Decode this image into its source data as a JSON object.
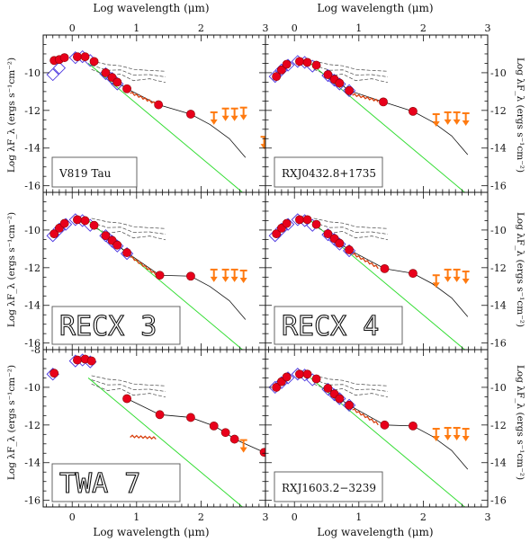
{
  "chart_data": {
    "type": "scatter",
    "x_axis": {
      "label": "Log wavelength (μm)",
      "ticks": [
        "0",
        "1",
        "2",
        "3"
      ],
      "range": [
        -0.45,
        3.0
      ]
    },
    "y_axis": {
      "label_left": "Log λF_λ (ergs s⁻¹cm⁻²)",
      "label_right": "Log λF_λ (ergs s⁻¹cm⁻²)",
      "ticks": [
        "-16",
        "-14",
        "-12",
        "-10"
      ],
      "top_tick_last_row": "-8",
      "range": [
        -16.35,
        -8.0
      ]
    },
    "colors": {
      "photometry": "#e8001b",
      "photometry_outline": "#8c0008",
      "model_photosphere": "#4a35e0",
      "upper_limit": "#ff7a10",
      "spectrum": "#d8400e",
      "disk_model": "#111111",
      "photosphere_line": "#33dd33",
      "dashed_median": "#444444"
    },
    "panels": [
      {
        "name": "V819 Tau",
        "name_style": "small",
        "photometry_x": [
          -0.28,
          -0.2,
          -0.12,
          0.08,
          0.2,
          0.34,
          0.52,
          0.62,
          0.7,
          0.85,
          1.34,
          1.84
        ],
        "photometry_y": [
          -9.35,
          -9.3,
          -9.2,
          -9.15,
          -9.15,
          -9.4,
          -10.0,
          -10.25,
          -10.5,
          -10.85,
          -11.7,
          -12.2
        ],
        "model_x": [
          -0.3,
          -0.2,
          0.05,
          0.16,
          0.28,
          0.52,
          0.62,
          0.7
        ],
        "model_y": [
          -10.1,
          -9.75,
          -9.2,
          -9.15,
          -9.35,
          -10.05,
          -10.3,
          -10.6
        ],
        "upper_limits_x": [
          2.2,
          2.38,
          2.52,
          2.66,
          2.98
        ],
        "upper_limits_y": [
          -12.1,
          -11.9,
          -11.9,
          -11.85,
          -13.4
        ]
      },
      {
        "name": "RXJ0432.8+1735",
        "name_style": "small",
        "photometry_x": [
          -0.28,
          -0.2,
          -0.12,
          0.08,
          0.2,
          0.34,
          0.52,
          0.62,
          0.7,
          0.85,
          1.38,
          1.84
        ],
        "photometry_y": [
          -10.2,
          -9.85,
          -9.55,
          -9.4,
          -9.45,
          -9.6,
          -10.1,
          -10.35,
          -10.55,
          -10.95,
          -11.55,
          -12.05
        ],
        "model_x": [
          -0.3,
          -0.2,
          -0.1,
          0.05,
          0.16,
          0.28,
          0.52,
          0.62,
          0.7,
          0.85
        ],
        "model_y": [
          -10.2,
          -9.85,
          -9.6,
          -9.4,
          -9.45,
          -9.65,
          -10.15,
          -10.4,
          -10.6,
          -10.95
        ],
        "upper_limits_x": [
          2.2,
          2.38,
          2.52,
          2.66
        ],
        "upper_limits_y": [
          -12.2,
          -12.1,
          -12.1,
          -12.15
        ]
      },
      {
        "name": "RECX 3",
        "name_style": "big",
        "photometry_x": [
          -0.28,
          -0.2,
          -0.12,
          0.08,
          0.2,
          0.34,
          0.52,
          0.62,
          0.7,
          0.85,
          1.36,
          1.84
        ],
        "photometry_y": [
          -10.2,
          -9.9,
          -9.65,
          -9.45,
          -9.5,
          -9.75,
          -10.3,
          -10.55,
          -10.8,
          -11.2,
          -12.4,
          -12.45
        ],
        "model_x": [
          -0.3,
          -0.2,
          -0.1,
          0.05,
          0.16,
          0.28,
          0.52,
          0.62,
          0.7,
          0.85
        ],
        "model_y": [
          -10.3,
          -9.95,
          -9.7,
          -9.45,
          -9.5,
          -9.75,
          -10.3,
          -10.6,
          -10.85,
          -11.25
        ],
        "upper_limits_x": [
          2.2,
          2.38,
          2.52,
          2.66
        ],
        "upper_limits_y": [
          -12.1,
          -12.1,
          -12.1,
          -12.15
        ]
      },
      {
        "name": "RECX 4",
        "name_style": "big",
        "photometry_x": [
          -0.28,
          -0.2,
          -0.12,
          0.08,
          0.2,
          0.34,
          0.52,
          0.62,
          0.7,
          0.85,
          1.4,
          1.84
        ],
        "photometry_y": [
          -10.2,
          -9.9,
          -9.65,
          -9.45,
          -9.45,
          -9.7,
          -10.2,
          -10.45,
          -10.7,
          -11.05,
          -12.05,
          -12.3
        ],
        "model_x": [
          -0.3,
          -0.2,
          -0.1,
          0.05,
          0.16,
          0.28,
          0.52,
          0.62,
          0.7,
          0.85
        ],
        "model_y": [
          -10.3,
          -9.95,
          -9.7,
          -9.45,
          -9.5,
          -9.75,
          -10.25,
          -10.5,
          -10.75,
          -11.1
        ],
        "upper_limits_x": [
          2.2,
          2.38,
          2.52,
          2.66
        ],
        "upper_limits_y": [
          -12.4,
          -12.1,
          -12.1,
          -12.2
        ]
      },
      {
        "name": "TWA 7",
        "name_style": "big",
        "photometry_x": [
          -0.28,
          0.08,
          0.2,
          0.3,
          0.85,
          1.36,
          1.84,
          2.2,
          2.38,
          2.52,
          2.98
        ],
        "photometry_y": [
          -9.25,
          -8.55,
          -8.5,
          -8.6,
          -10.6,
          -11.45,
          -11.6,
          -12.05,
          -12.4,
          -12.75,
          -13.45
        ],
        "model_x": [
          -0.3,
          0.05,
          0.16,
          0.28
        ],
        "model_y": [
          -9.3,
          -8.6,
          -8.55,
          -8.65
        ],
        "upper_limits_x": [
          2.66
        ],
        "upper_limits_y": [
          -12.8
        ]
      },
      {
        "name": "RXJ1603.2−3239",
        "name_style": "small",
        "photometry_x": [
          -0.28,
          -0.2,
          -0.12,
          0.08,
          0.2,
          0.34,
          0.52,
          0.62,
          0.7,
          0.85,
          1.4,
          1.84
        ],
        "photometry_y": [
          -10.0,
          -9.7,
          -9.45,
          -9.3,
          -9.3,
          -9.55,
          -10.05,
          -10.35,
          -10.6,
          -10.95,
          -12.0,
          -12.05
        ],
        "model_x": [
          -0.3,
          -0.2,
          -0.1,
          0.05,
          0.16,
          0.28,
          0.52,
          0.62,
          0.7,
          0.85
        ],
        "model_y": [
          -10.0,
          -9.75,
          -9.5,
          -9.3,
          -9.35,
          -9.6,
          -10.1,
          -10.4,
          -10.6,
          -10.95
        ],
        "upper_limits_x": [
          2.2,
          2.38,
          2.52,
          2.66
        ],
        "upper_limits_y": [
          -12.2,
          -12.15,
          -12.15,
          -12.2
        ]
      }
    ],
    "legend": "none",
    "grid": false
  }
}
